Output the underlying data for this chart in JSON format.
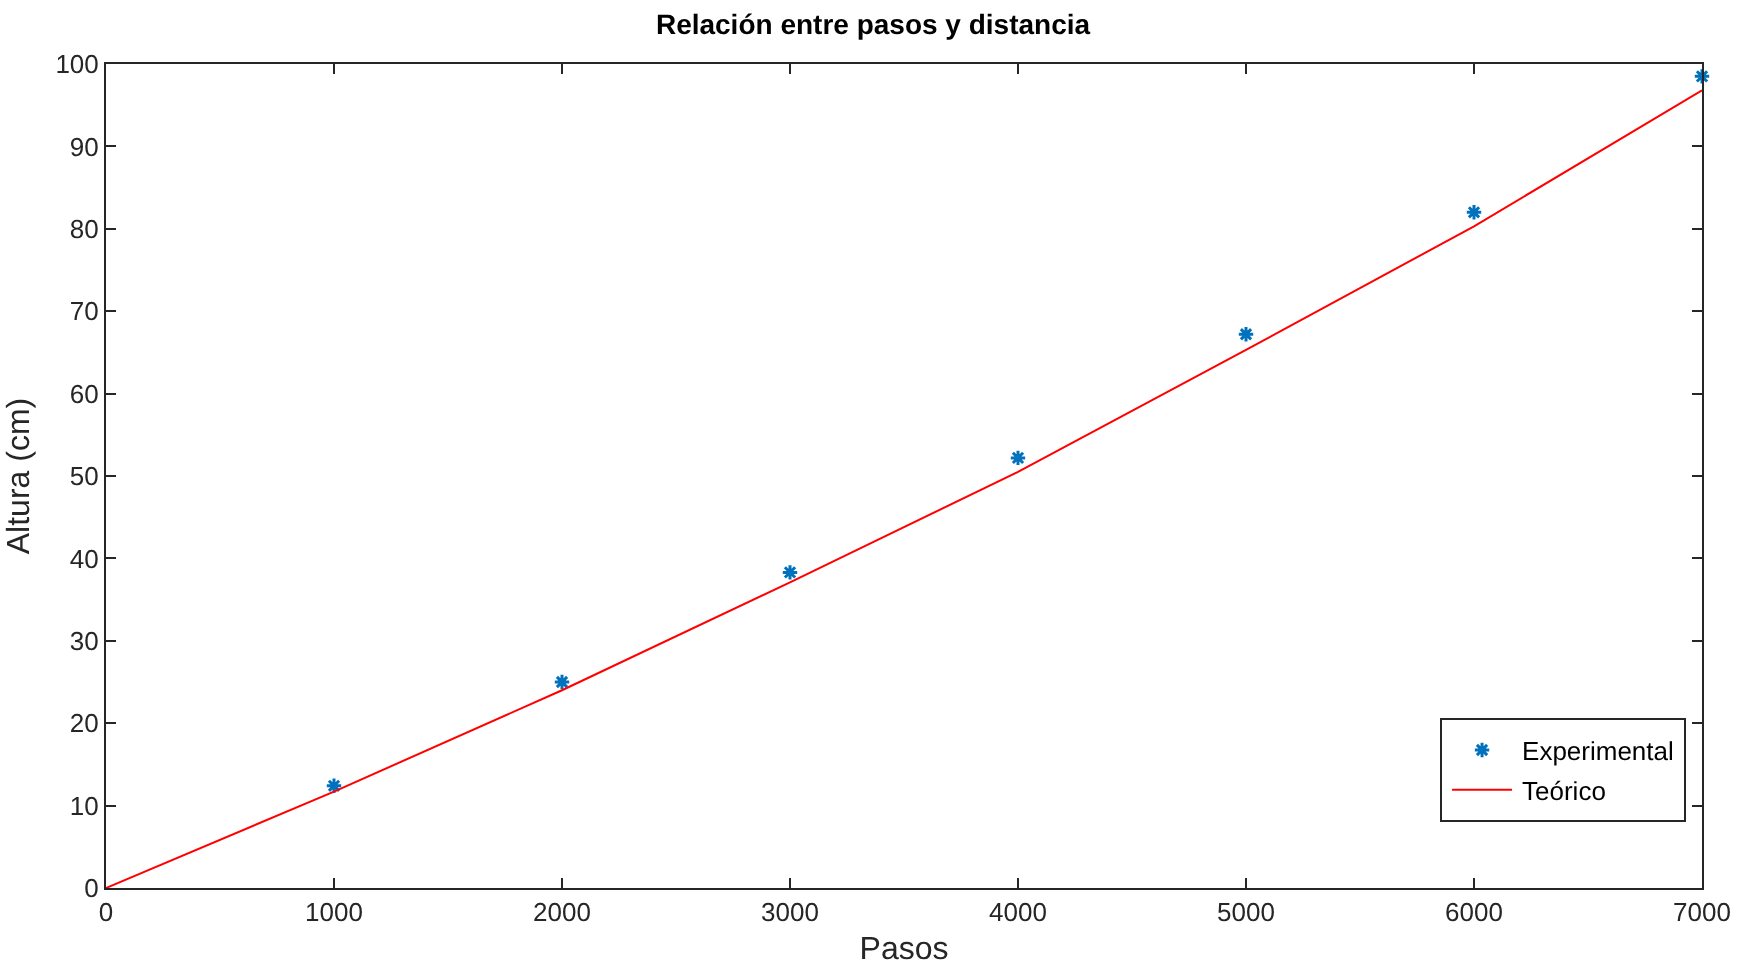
{
  "chart_data": {
    "type": "scatter",
    "title": "Relación entre pasos y distancia",
    "xlabel": "Pasos",
    "ylabel": "Altura (cm)",
    "x": [
      1000,
      2000,
      3000,
      4000,
      5000,
      6000,
      7000
    ],
    "series": [
      {
        "name": "Experimental",
        "type": "scatter",
        "color": "#0072bd",
        "marker": "cross",
        "values": [
          12.4,
          25.0,
          38.3,
          52.2,
          67.2,
          82.0,
          98.5
        ]
      },
      {
        "name": "Teórico",
        "type": "line",
        "color": "#ff0000",
        "marker": "none",
        "line_style": "solid",
        "x": [
          0,
          1000,
          2000,
          3000,
          4000,
          5000,
          6000,
          7000
        ],
        "values": [
          0,
          11.7,
          24.0,
          37.1,
          50.5,
          65.3,
          80.3,
          96.8
        ]
      }
    ],
    "xlim": [
      0,
      7000
    ],
    "xticks": [
      0,
      1000,
      2000,
      3000,
      4000,
      5000,
      6000,
      7000
    ],
    "ylim": [
      0,
      100
    ],
    "yticks": [
      0,
      10,
      20,
      30,
      40,
      50,
      60,
      70,
      80,
      90,
      100
    ],
    "grid": false,
    "legend": "bottom right"
  }
}
